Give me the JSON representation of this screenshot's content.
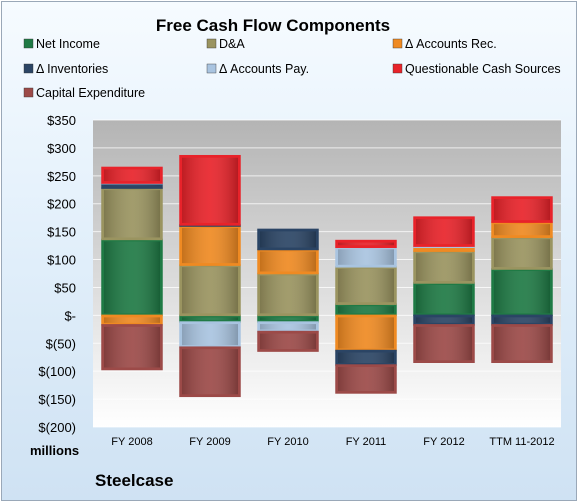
{
  "chart_data": {
    "type": "bar",
    "stacked": true,
    "title": "Free Cash Flow Components",
    "categories": [
      "FY 2008",
      "FY 2009",
      "FY 2010",
      "FY 2011",
      "FY 2012",
      "TTM 11-2012"
    ],
    "y_ticks": [
      "$350",
      "$300",
      "$250",
      "$200",
      "$150",
      "$100",
      "$50",
      "$-",
      "$(50)",
      "$(100)",
      "$(150)",
      "$(200)"
    ],
    "ylim": [
      -200,
      350
    ],
    "y_unit_label": "millions",
    "company": "Steelcase",
    "legend_placement": "top",
    "grid": true,
    "series": [
      {
        "name": "Net Income",
        "color": "#1f7a45",
        "values": [
          136,
          -12,
          -12,
          20,
          58,
          83
        ]
      },
      {
        "name": "D&A",
        "color": "#9a9460",
        "values": [
          92,
          90,
          75,
          67,
          57,
          57
        ]
      },
      {
        "name": "Δ Accounts Rec.",
        "color": "#ef8a22",
        "values": [
          -17,
          70,
          43,
          -63,
          7,
          27
        ]
      },
      {
        "name": "Δ Inventories",
        "color": "#2b4565",
        "values": [
          8,
          2,
          36,
          -26,
          -17,
          -17
        ]
      },
      {
        "name": "Δ Accounts Pay.",
        "color": "#a9c4e0",
        "values": [
          1,
          -45,
          -17,
          35,
          2,
          0
        ]
      },
      {
        "name": "Questionable Cash Sources",
        "color": "#e8232a",
        "values": [
          28,
          124,
          0,
          12,
          52,
          45
        ]
      },
      {
        "name": "Capital Expenditure",
        "color": "#9c4a48",
        "values": [
          -80,
          -88,
          -35,
          -50,
          -67,
          -67
        ]
      }
    ]
  }
}
